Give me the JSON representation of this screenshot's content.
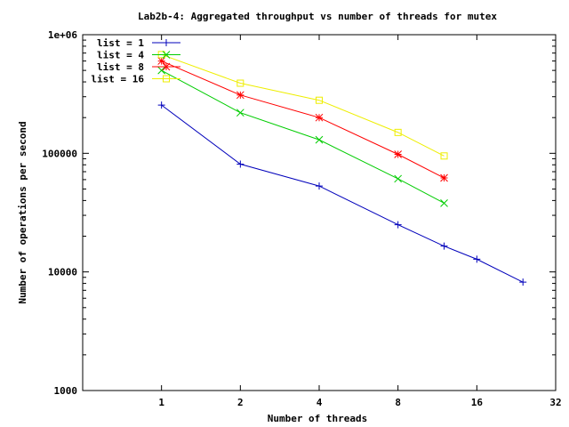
{
  "chart_data": {
    "type": "line",
    "title": "Lab2b-4: Aggregated throughput vs number of threads for mutex",
    "xlabel": "Number of threads",
    "ylabel": "Number of operations per second",
    "x_scale": "log2",
    "y_scale": "log10",
    "xlim": [
      0.5,
      32
    ],
    "ylim": [
      1000,
      1000000
    ],
    "x_ticks": [
      1,
      2,
      4,
      8,
      16,
      32
    ],
    "x_tick_labels": [
      "1",
      "2",
      "4",
      "8",
      "16",
      "32"
    ],
    "y_ticks": [
      1000,
      10000,
      100000,
      1000000
    ],
    "y_tick_labels": [
      "1000",
      "10000",
      "100000",
      "1e+06"
    ],
    "grid": false,
    "legend_position": "top-left",
    "series": [
      {
        "name": "list = 1",
        "color": "#0000bb",
        "marker": "plus",
        "x": [
          1,
          2,
          4,
          8,
          12,
          16,
          24
        ],
        "y": [
          255000,
          81000,
          53000,
          25000,
          16500,
          12800,
          8200
        ]
      },
      {
        "name": "list = 4",
        "color": "#00cc00",
        "marker": "cross",
        "x": [
          1,
          2,
          4,
          8,
          12
        ],
        "y": [
          500000,
          220000,
          130000,
          61000,
          38000
        ]
      },
      {
        "name": "list = 8",
        "color": "#ff0000",
        "marker": "star",
        "x": [
          1,
          2,
          4,
          8,
          12
        ],
        "y": [
          600000,
          310000,
          200000,
          98000,
          62000
        ]
      },
      {
        "name": "list = 16",
        "color": "#eeee00",
        "marker": "square",
        "x": [
          1,
          2,
          4,
          8,
          12
        ],
        "y": [
          680000,
          390000,
          280000,
          150000,
          95000
        ]
      }
    ]
  }
}
